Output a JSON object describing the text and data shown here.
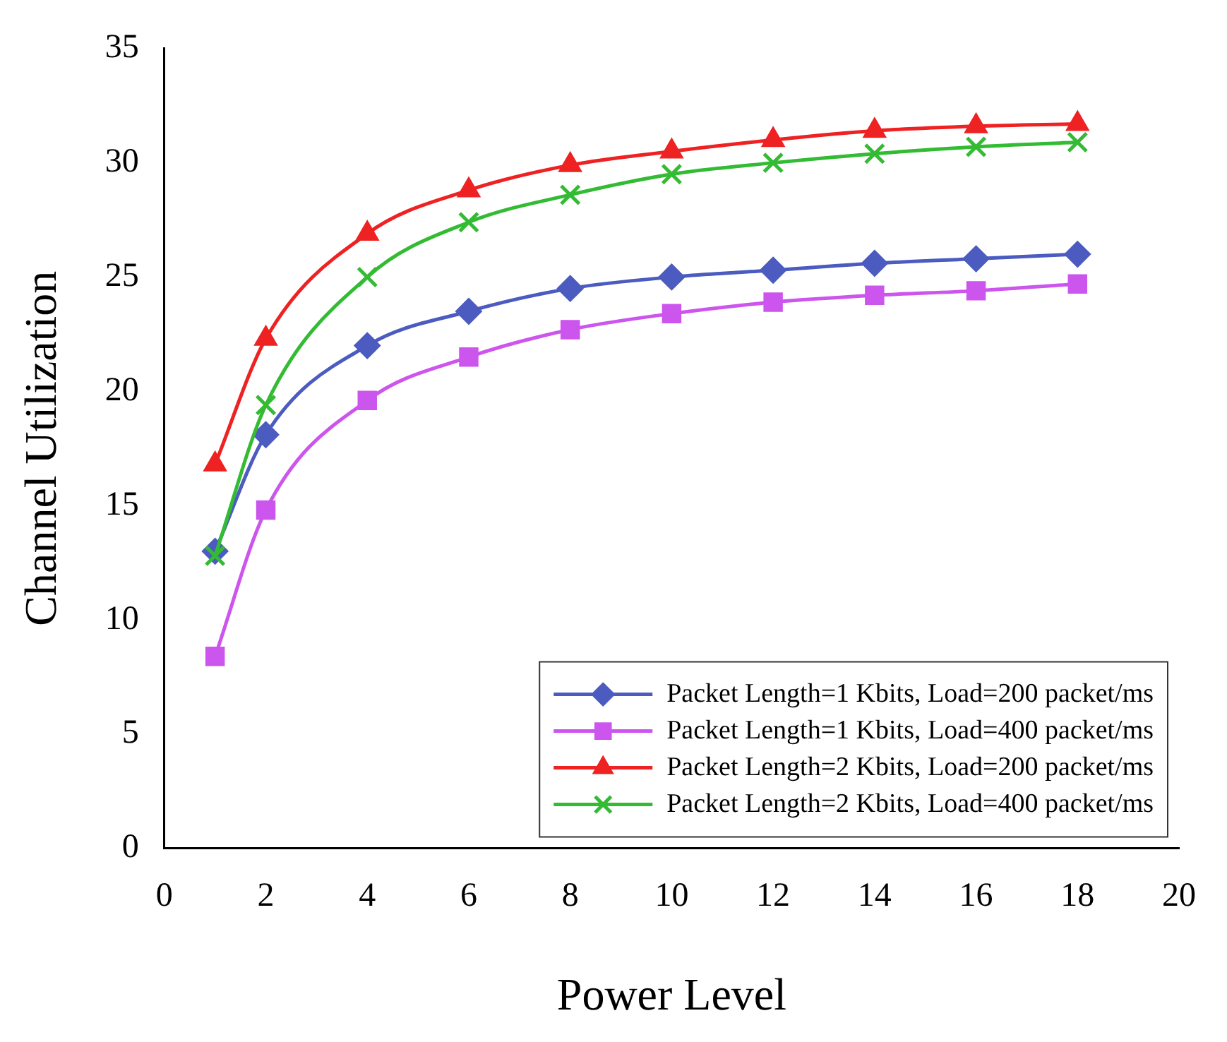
{
  "chart_data": {
    "type": "line",
    "xlabel": "Power Level",
    "ylabel": "Channel Utilization",
    "x": [
      1,
      2,
      4,
      6,
      8,
      10,
      12,
      14,
      16,
      18
    ],
    "xlim": [
      0,
      20
    ],
    "xticks": [
      0,
      2,
      4,
      6,
      8,
      10,
      12,
      14,
      16,
      18,
      20
    ],
    "ylim": [
      0,
      35
    ],
    "yticks": [
      0,
      5,
      10,
      15,
      20,
      25,
      30,
      35
    ],
    "grid": false,
    "legend": "bottom right",
    "line_style": "solid",
    "series": [
      {
        "name": "Packet Length=1 Kbits, Load=200 packet/ms",
        "color": "#4b5bbf",
        "marker": "diamond",
        "values": [
          13.0,
          18.1,
          22.0,
          23.5,
          24.5,
          25.0,
          25.3,
          25.6,
          25.8,
          26.0
        ]
      },
      {
        "name": "Packet Length=1 Kbits, Load=400 packet/ms",
        "color": "#cc55ee",
        "marker": "square",
        "values": [
          8.4,
          14.8,
          19.6,
          21.5,
          22.7,
          23.4,
          23.9,
          24.2,
          24.4,
          24.7
        ]
      },
      {
        "name": "Packet Length=2 Kbits, Load=200 packet/ms",
        "color": "#ee2222",
        "marker": "triangle",
        "values": [
          16.8,
          22.3,
          26.9,
          28.8,
          29.9,
          30.5,
          31.0,
          31.4,
          31.6,
          31.7
        ]
      },
      {
        "name": "Packet Length=2 Kbits, Load=400 packet/ms",
        "color": "#33bb33",
        "marker": "cross",
        "values": [
          12.8,
          19.4,
          25.0,
          27.4,
          28.6,
          29.5,
          30.0,
          30.4,
          30.7,
          30.9
        ]
      }
    ]
  }
}
